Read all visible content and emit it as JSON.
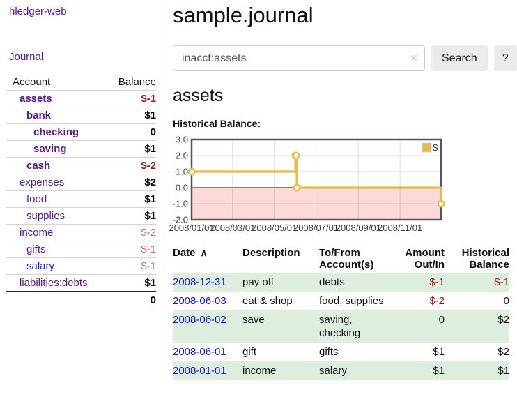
{
  "app": {
    "title": "hledger-web"
  },
  "sidebar": {
    "nav": [
      {
        "label": "Journal"
      }
    ],
    "accounts_table": {
      "headers": {
        "account": "Account",
        "balance": "Balance"
      },
      "rows": [
        {
          "name": "assets",
          "depth": 1,
          "bold": true,
          "balance": "$-1",
          "balance_class": "strong-neg"
        },
        {
          "name": "bank",
          "depth": 2,
          "bold": true,
          "balance": "$1",
          "balance_class": "strong"
        },
        {
          "name": "checking",
          "depth": 3,
          "bold": true,
          "balance": "0",
          "balance_class": "strong"
        },
        {
          "name": "saving",
          "depth": 3,
          "bold": true,
          "balance": "$1",
          "balance_class": "strong"
        },
        {
          "name": "cash",
          "depth": 2,
          "bold": true,
          "balance": "$-2",
          "balance_class": "strong-neg"
        },
        {
          "name": "expenses",
          "depth": 1,
          "bold": false,
          "balance": "$2",
          "balance_class": "strong"
        },
        {
          "name": "food",
          "depth": 2,
          "bold": false,
          "balance": "$1",
          "balance_class": "strong"
        },
        {
          "name": "supplies",
          "depth": 2,
          "bold": false,
          "balance": "$1",
          "balance_class": "strong"
        },
        {
          "name": "income",
          "depth": 1,
          "bold": false,
          "balance": "$-2",
          "balance_class": "soft-neg"
        },
        {
          "name": "gifts",
          "depth": 2,
          "bold": false,
          "balance": "$-1",
          "balance_class": "soft-neg"
        },
        {
          "name": "salary",
          "depth": 2,
          "bold": false,
          "blue": true,
          "balance": "$-1",
          "balance_class": "soft-neg"
        },
        {
          "name": "liabilities:debts",
          "depth": 1,
          "bold": false,
          "balance": "$1",
          "balance_class": "strong"
        }
      ],
      "total": "0"
    }
  },
  "main": {
    "title": "sample.journal",
    "search": {
      "value": "inacct:assets",
      "clear_icon": "✕",
      "button": "Search",
      "help_button": "?"
    },
    "account_heading": "assets",
    "chart_label": "Historical Balance:"
  },
  "chart_data": {
    "type": "line",
    "title": "Historical Balance:",
    "step": true,
    "series": [
      {
        "name": "$",
        "points": [
          [
            "2008-01-01",
            1
          ],
          [
            "2008-06-01",
            2
          ],
          [
            "2008-06-02",
            2
          ],
          [
            "2008-06-03",
            0
          ],
          [
            "2008-12-31",
            -1
          ]
        ]
      }
    ],
    "xrange": [
      "2008-01-01",
      "2008-12-31"
    ],
    "ylim": [
      -2,
      3
    ],
    "y_ticks": [
      {
        "v": 3,
        "label": "3.0"
      },
      {
        "v": 2,
        "label": "2.0"
      },
      {
        "v": 1,
        "label": "1.0"
      },
      {
        "v": 0,
        "label": "0.0"
      },
      {
        "v": -1,
        "label": "-1.0"
      },
      {
        "v": -2,
        "label": "-2.0"
      }
    ],
    "x_ticks": [
      "2008/01/01",
      "2008/03/01",
      "2008/05/01",
      "2008/07/01",
      "2008/09/01",
      "2008/11/01"
    ],
    "grid": true,
    "legend_position": "top-right",
    "line_color": "#e3bc4b",
    "negative_region_color": "#fcdada",
    "zero_line_color": "#8b1a1a"
  },
  "register_table": {
    "headers": [
      "Date",
      "Description",
      "To/From Account(s)",
      "Amount Out/In",
      "Historical Balance"
    ],
    "sort_indicator": "∧",
    "rows": [
      {
        "date": "2008-12-31",
        "description": "pay off",
        "accounts": "debts",
        "amount": "$-1",
        "amount_neg": true,
        "balance": "$-1",
        "balance_neg": true
      },
      {
        "date": "2008-06-03",
        "description": "eat & shop",
        "accounts": "food, supplies",
        "amount": "$-2",
        "amount_neg": true,
        "balance": "0",
        "balance_neg": false
      },
      {
        "date": "2008-06-02",
        "description": "save",
        "accounts": "saving, checking",
        "amount": "0",
        "amount_neg": false,
        "balance": "$2",
        "balance_neg": false
      },
      {
        "date": "2008-06-01",
        "description": "gift",
        "accounts": "gifts",
        "amount": "$1",
        "amount_neg": false,
        "balance": "$2",
        "balance_neg": false
      },
      {
        "date": "2008-01-01",
        "description": "income",
        "accounts": "salary",
        "amount": "$1",
        "amount_neg": false,
        "balance": "$1",
        "balance_neg": false
      }
    ]
  },
  "colors": {
    "link_purple": "#541b8b",
    "link_blue": "#1a16cc",
    "negative_strong": "#9b1c1c",
    "negative_soft": "#b97474",
    "row_stripe_green": "#deeede",
    "chart_gold": "#e3bc4b",
    "chart_negative_bg": "#fcdada",
    "chart_zero_line": "#8b1a1a"
  }
}
